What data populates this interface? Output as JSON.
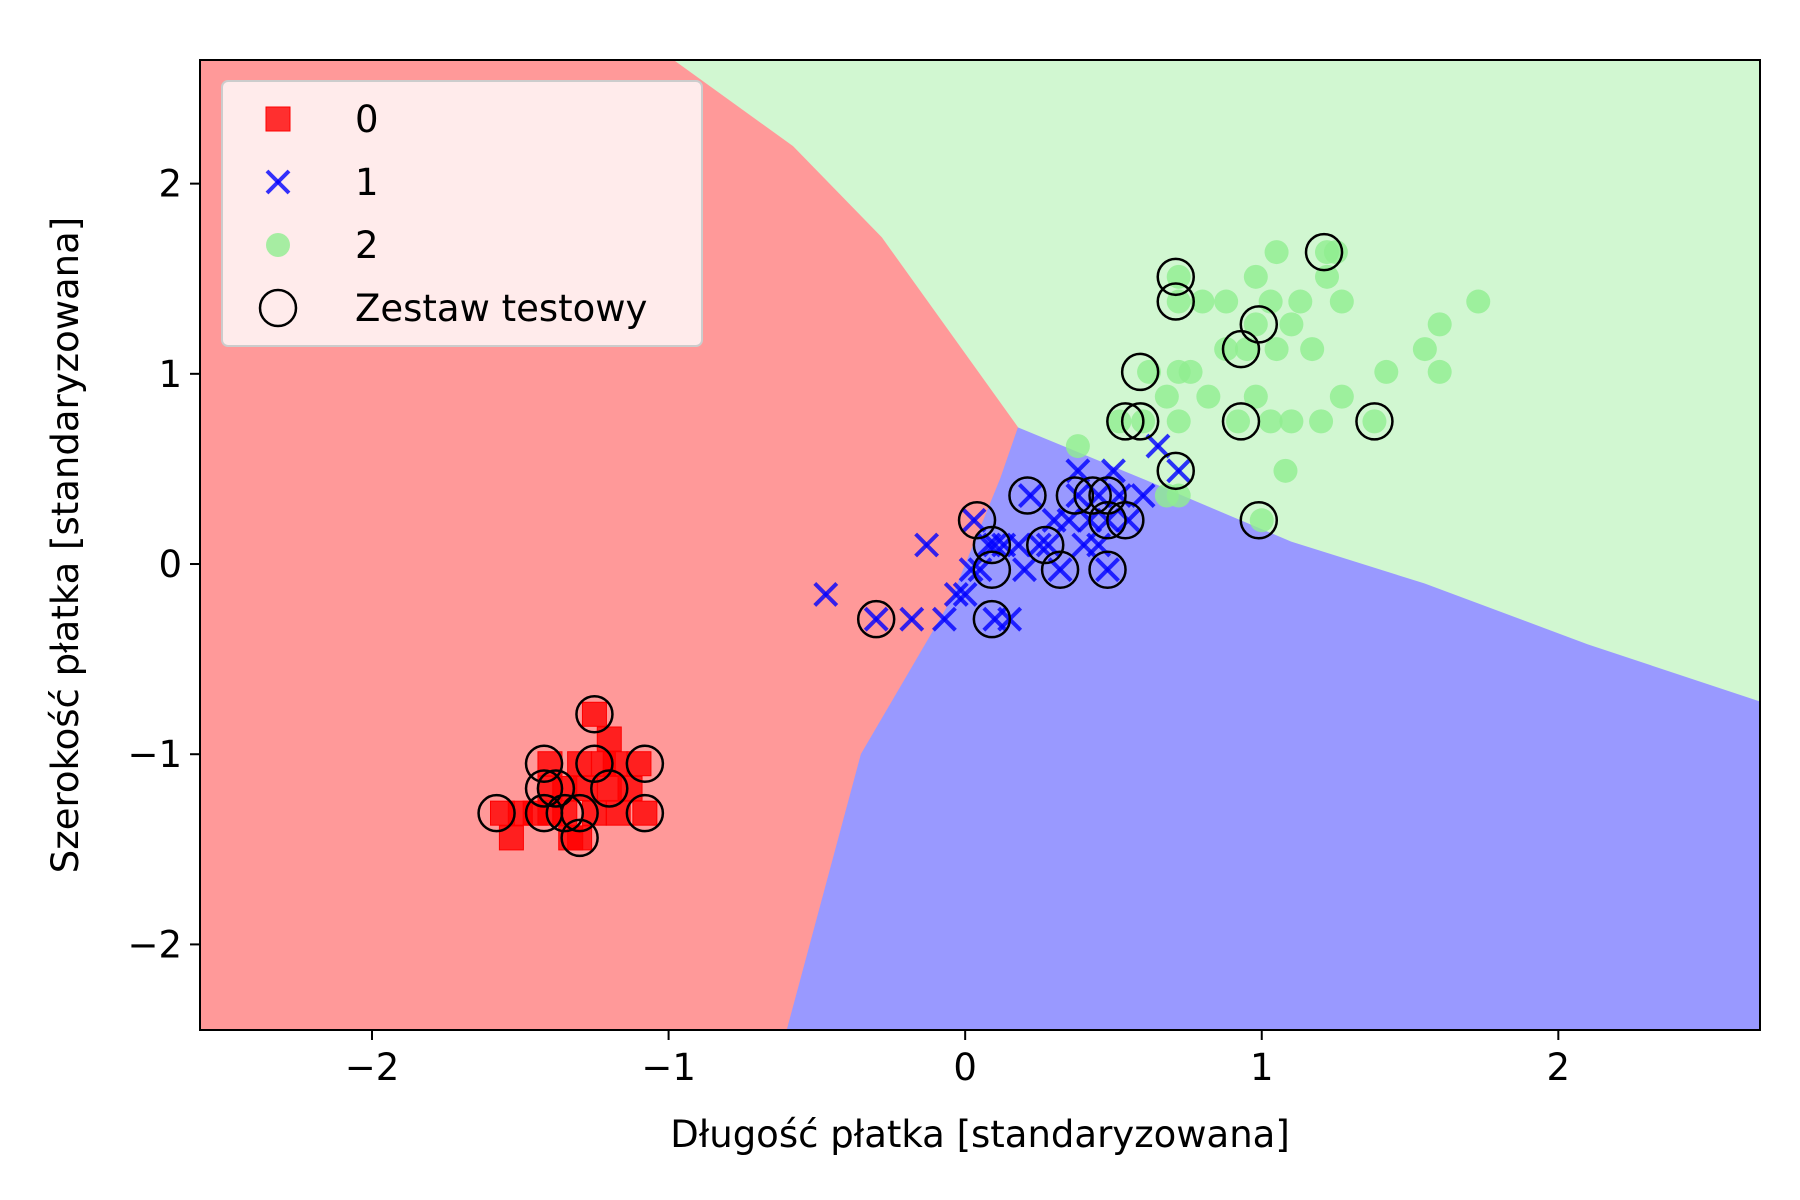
{
  "chart_data": {
    "type": "scatter",
    "title": "",
    "xlabel": "Długość płatka [standaryzowana]",
    "ylabel": "Szerokość płatka [standaryzowana]",
    "xlim": [
      -2.58,
      2.68
    ],
    "ylim": [
      -2.45,
      2.65
    ],
    "xticks": [
      -2,
      -1,
      0,
      1,
      2
    ],
    "yticks": [
      -2,
      -1,
      0,
      1,
      2
    ],
    "xtick_labels": [
      "−2",
      "−1",
      "0",
      "1",
      "2"
    ],
    "ytick_labels": [
      "−2",
      "−1",
      "0",
      "1",
      "2"
    ],
    "grid": false,
    "legend_placement": "top-left",
    "decision_regions": [
      {
        "class": "0",
        "color": "#ff9999",
        "polygon": [
          [
            -2.58,
            2.65
          ],
          [
            -0.98,
            2.65
          ],
          [
            -0.58,
            2.2
          ],
          [
            -0.28,
            1.72
          ],
          [
            0.18,
            0.72
          ],
          [
            0.12,
            0.45
          ],
          [
            -0.05,
            -0.2
          ],
          [
            -0.35,
            -1.0
          ],
          [
            -0.6,
            -2.45
          ],
          [
            -2.58,
            -2.45
          ]
        ]
      },
      {
        "class": "1",
        "color": "#9999ff",
        "polygon": [
          [
            0.18,
            0.72
          ],
          [
            0.6,
            0.45
          ],
          [
            1.1,
            0.12
          ],
          [
            1.55,
            -0.1
          ],
          [
            2.1,
            -0.42
          ],
          [
            2.68,
            -0.72
          ],
          [
            2.68,
            -2.45
          ],
          [
            -0.6,
            -2.45
          ],
          [
            -0.35,
            -1.0
          ],
          [
            -0.05,
            -0.2
          ],
          [
            0.12,
            0.45
          ]
        ]
      },
      {
        "class": "2",
        "color": "#d1f7d1",
        "polygon": [
          [
            -0.98,
            2.65
          ],
          [
            2.68,
            2.65
          ],
          [
            2.68,
            -0.72
          ],
          [
            2.1,
            -0.42
          ],
          [
            1.55,
            -0.1
          ],
          [
            1.1,
            0.12
          ],
          [
            0.6,
            0.45
          ],
          [
            0.18,
            0.72
          ],
          [
            -0.28,
            1.72
          ],
          [
            -0.58,
            2.2
          ]
        ]
      }
    ],
    "series": [
      {
        "name": "0",
        "marker": "square",
        "color": "#ff0000",
        "points": [
          [
            -1.56,
            -1.31
          ],
          [
            -1.53,
            -1.44
          ],
          [
            -1.5,
            -1.31
          ],
          [
            -1.45,
            -1.31
          ],
          [
            -1.4,
            -1.18
          ],
          [
            -1.4,
            -1.05
          ],
          [
            -1.35,
            -1.18
          ],
          [
            -1.35,
            -1.31
          ],
          [
            -1.33,
            -1.44
          ],
          [
            -1.3,
            -1.05
          ],
          [
            -1.28,
            -1.18
          ],
          [
            -1.25,
            -1.31
          ],
          [
            -1.22,
            -1.05
          ],
          [
            -1.2,
            -0.92
          ],
          [
            -1.2,
            -1.18
          ],
          [
            -1.17,
            -1.31
          ],
          [
            -1.13,
            -1.18
          ],
          [
            -1.1,
            -1.05
          ],
          [
            -1.08,
            -1.31
          ],
          [
            -1.25,
            -0.79
          ],
          [
            -1.4,
            -1.31
          ],
          [
            -1.3,
            -1.44
          ],
          [
            -1.18,
            -1.05
          ]
        ]
      },
      {
        "name": "1",
        "marker": "x",
        "color": "#0000ff",
        "points": [
          [
            -0.47,
            -0.16
          ],
          [
            -0.3,
            -0.29
          ],
          [
            -0.18,
            -0.29
          ],
          [
            -0.13,
            0.1
          ],
          [
            -0.07,
            -0.29
          ],
          [
            -0.03,
            -0.16
          ],
          [
            0.0,
            -0.16
          ],
          [
            0.02,
            -0.03
          ],
          [
            0.03,
            0.23
          ],
          [
            0.05,
            -0.03
          ],
          [
            0.08,
            0.1
          ],
          [
            0.1,
            -0.29
          ],
          [
            0.1,
            0.1
          ],
          [
            0.13,
            0.1
          ],
          [
            0.15,
            -0.29
          ],
          [
            0.18,
            0.1
          ],
          [
            0.2,
            -0.03
          ],
          [
            0.22,
            0.36
          ],
          [
            0.25,
            0.1
          ],
          [
            0.28,
            0.1
          ],
          [
            0.3,
            0.23
          ],
          [
            0.32,
            -0.03
          ],
          [
            0.35,
            0.23
          ],
          [
            0.38,
            0.36
          ],
          [
            0.38,
            0.49
          ],
          [
            0.4,
            0.1
          ],
          [
            0.42,
            0.23
          ],
          [
            0.45,
            0.36
          ],
          [
            0.45,
            0.1
          ],
          [
            0.48,
            0.23
          ],
          [
            0.48,
            -0.03
          ],
          [
            0.5,
            0.49
          ],
          [
            0.52,
            0.36
          ],
          [
            0.55,
            0.23
          ],
          [
            0.6,
            0.36
          ],
          [
            0.65,
            0.62
          ],
          [
            0.72,
            0.49
          ]
        ]
      },
      {
        "name": "2",
        "marker": "circle",
        "color": "#90ee90",
        "points": [
          [
            0.38,
            0.62
          ],
          [
            0.52,
            0.75
          ],
          [
            0.6,
            0.75
          ],
          [
            0.62,
            1.01
          ],
          [
            0.68,
            0.88
          ],
          [
            0.68,
            0.36
          ],
          [
            0.72,
            0.36
          ],
          [
            0.72,
            1.01
          ],
          [
            0.72,
            0.75
          ],
          [
            0.72,
            1.38
          ],
          [
            0.72,
            1.51
          ],
          [
            0.76,
            1.01
          ],
          [
            0.8,
            1.38
          ],
          [
            0.82,
            0.88
          ],
          [
            0.88,
            1.38
          ],
          [
            0.88,
            1.13
          ],
          [
            0.92,
            0.75
          ],
          [
            0.95,
            1.13
          ],
          [
            0.98,
            1.51
          ],
          [
            0.98,
            1.26
          ],
          [
            1.03,
            1.38
          ],
          [
            1.03,
            0.75
          ],
          [
            1.05,
            1.64
          ],
          [
            1.05,
            1.13
          ],
          [
            1.08,
            0.49
          ],
          [
            1.1,
            1.26
          ],
          [
            1.1,
            0.75
          ],
          [
            1.13,
            1.38
          ],
          [
            1.17,
            1.13
          ],
          [
            1.2,
            0.75
          ],
          [
            1.22,
            1.64
          ],
          [
            1.25,
            1.64
          ],
          [
            1.27,
            0.88
          ],
          [
            1.27,
            1.38
          ],
          [
            1.42,
            1.01
          ],
          [
            1.55,
            1.13
          ],
          [
            1.6,
            1.26
          ],
          [
            1.6,
            1.01
          ],
          [
            1.73,
            1.38
          ],
          [
            1.0,
            0.23
          ],
          [
            1.38,
            0.75
          ],
          [
            0.98,
            0.88
          ],
          [
            1.22,
            1.51
          ]
        ]
      },
      {
        "name": "Zestaw testowy",
        "marker": "open-circle",
        "color": "#000000",
        "points": [
          [
            -1.58,
            -1.31
          ],
          [
            -1.42,
            -1.05
          ],
          [
            -1.42,
            -1.18
          ],
          [
            -1.42,
            -1.31
          ],
          [
            -1.38,
            -1.18
          ],
          [
            -1.35,
            -1.31
          ],
          [
            -1.3,
            -1.44
          ],
          [
            -1.3,
            -1.31
          ],
          [
            -1.25,
            -1.05
          ],
          [
            -1.25,
            -0.79
          ],
          [
            -1.2,
            -1.18
          ],
          [
            -1.08,
            -1.05
          ],
          [
            -1.08,
            -1.31
          ],
          [
            -0.3,
            -0.29
          ],
          [
            0.04,
            0.23
          ],
          [
            0.09,
            0.1
          ],
          [
            0.09,
            -0.03
          ],
          [
            0.09,
            -0.29
          ],
          [
            0.21,
            0.36
          ],
          [
            0.27,
            0.1
          ],
          [
            0.32,
            -0.03
          ],
          [
            0.37,
            0.36
          ],
          [
            0.43,
            0.36
          ],
          [
            0.48,
            0.36
          ],
          [
            0.48,
            0.23
          ],
          [
            0.48,
            -0.03
          ],
          [
            0.54,
            0.23
          ],
          [
            0.54,
            0.75
          ],
          [
            0.59,
            1.01
          ],
          [
            0.59,
            0.75
          ],
          [
            0.71,
            0.49
          ],
          [
            0.71,
            1.38
          ],
          [
            0.71,
            1.51
          ],
          [
            0.93,
            1.13
          ],
          [
            0.93,
            0.75
          ],
          [
            0.99,
            1.26
          ],
          [
            0.99,
            0.23
          ],
          [
            1.21,
            1.64
          ],
          [
            1.38,
            0.75
          ]
        ]
      }
    ],
    "legend": [
      {
        "label": "0",
        "marker": "square",
        "color": "#ff0000"
      },
      {
        "label": "1",
        "marker": "x",
        "color": "#0000ff"
      },
      {
        "label": "2",
        "marker": "circle",
        "color": "#90ee90"
      },
      {
        "label": "Zestaw testowy",
        "marker": "open-circle",
        "color": "#000000"
      }
    ]
  }
}
